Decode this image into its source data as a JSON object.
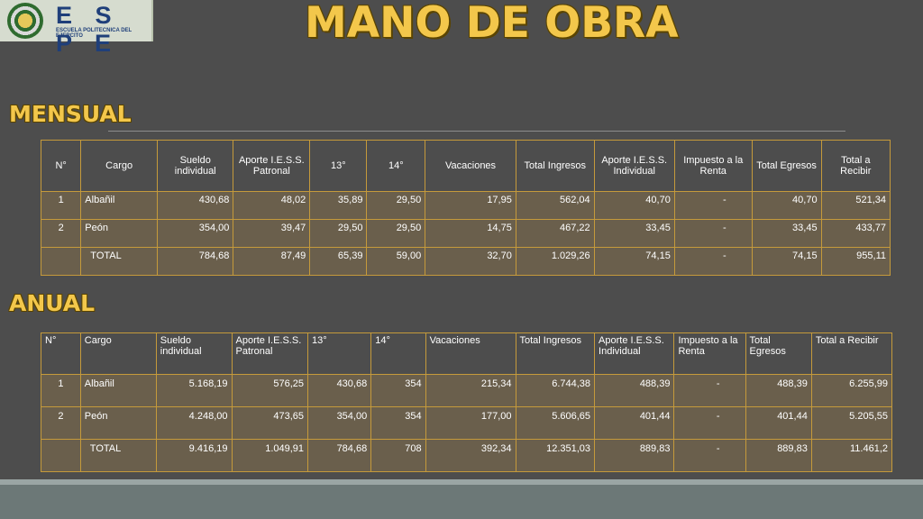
{
  "logo": {
    "name": "E S P E",
    "subtitle": "ESCUELA POLITECNICA DEL EJERCITO"
  },
  "title": "MANO DE OBRA",
  "mensual": {
    "label": "MENSUAL",
    "headers": [
      "N°",
      "Cargo",
      "Sueldo individual",
      "Aporte I.E.S.S. Patronal",
      "13°",
      "14°",
      "Vacaciones",
      "Total Ingresos",
      "Aporte I.E.S.S. Individual",
      "Impuesto a la Renta",
      "Total Egresos",
      "Total a Recibir"
    ],
    "rows": [
      [
        "1",
        "Albañil",
        "430,68",
        "48,02",
        "35,89",
        "29,50",
        "17,95",
        "562,04",
        "40,70",
        "-",
        "40,70",
        "521,34"
      ],
      [
        "2",
        "Peón",
        "354,00",
        "39,47",
        "29,50",
        "29,50",
        "14,75",
        "467,22",
        "33,45",
        "-",
        "33,45",
        "433,77"
      ],
      [
        "",
        "TOTAL",
        "784,68",
        "87,49",
        "65,39",
        "59,00",
        "32,70",
        "1.029,26",
        "74,15",
        "-",
        "74,15",
        "955,11"
      ]
    ]
  },
  "anual": {
    "label": "ANUAL",
    "headers": [
      "N°",
      "Cargo",
      "Sueldo individual",
      "Aporte I.E.S.S. Patronal",
      "13°",
      "14°",
      "Vacaciones",
      "Total Ingresos",
      "Aporte I.E.S.S. Individual",
      "Impuesto a la Renta",
      "Total Egresos",
      "Total a Recibir"
    ],
    "rows": [
      [
        "1",
        "Albañil",
        "5.168,19",
        "576,25",
        "430,68",
        "354",
        "215,34",
        "6.744,38",
        "488,39",
        "-",
        "488,39",
        "6.255,99"
      ],
      [
        "2",
        "Peón",
        "4.248,00",
        "473,65",
        "354,00",
        "354",
        "177,00",
        "5.606,65",
        "401,44",
        "-",
        "401,44",
        "5.205,55"
      ],
      [
        "",
        "TOTAL",
        "9.416,19",
        "1.049,91",
        "784,68",
        "708",
        "392,34",
        "12.351,03",
        "889,83",
        "-",
        "889,83",
        "11.461,2"
      ]
    ]
  }
}
